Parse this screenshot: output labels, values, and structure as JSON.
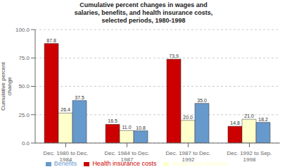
{
  "chart_data": {
    "type": "bar",
    "title": "Cumulative percent changes in wages and\nsalaries, benefits, and health insurance costs,\nselected periods, 1980-1998",
    "ylabel": "Cumulative percent\nchange",
    "categories": [
      "Dec. 1980 to Dec.\n1984",
      "Dec. 1984 to Dec.\n1987",
      "Dec. 1987 to Dec.\n1992",
      "Dec. 1992 to Sep.\n1998"
    ],
    "series": [
      {
        "name": "Health insurance costs",
        "color": "#CC0000",
        "values": [
          87.8,
          16.5,
          73.9,
          14.8
        ],
        "value_labels": [
          "87.8",
          "16.5",
          "73.9",
          "14.8"
        ]
      },
      {
        "name": "Wages and salaries",
        "color": "#FFFFCC",
        "values": [
          26.4,
          11.0,
          20.0,
          21.0
        ],
        "value_labels": [
          "26.4",
          "11.0",
          "20.0",
          "21.0"
        ]
      },
      {
        "name": "Benefits",
        "color": "#6699CC",
        "values": [
          37.5,
          10.8,
          35.0,
          18.2
        ],
        "value_labels": [
          "37.5",
          "10.8",
          "35.0",
          "18.2"
        ]
      }
    ],
    "ylim": [
      0,
      100
    ],
    "yticks": [
      {
        "value": 0,
        "label": "0.0"
      },
      {
        "value": 25,
        "label": "25.0"
      },
      {
        "value": 50,
        "label": "50.0"
      },
      {
        "value": 75,
        "label": "75.0"
      },
      {
        "value": 100,
        "label": "100.0"
      }
    ],
    "grid": true,
    "legend": "bottom",
    "data_labels": true
  }
}
